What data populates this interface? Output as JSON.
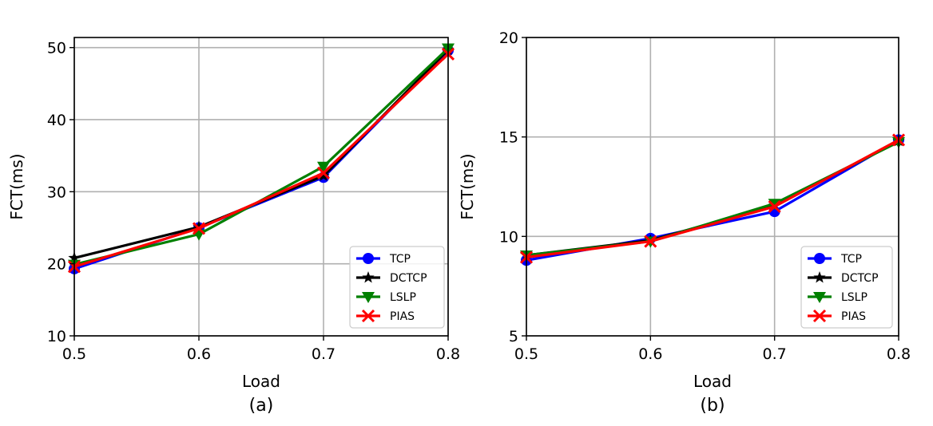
{
  "chart_data": [
    {
      "type": "line",
      "caption": "(a)",
      "xlabel": "Load",
      "ylabel": "FCT(ms)",
      "x": [
        0.5,
        0.6,
        0.7,
        0.8
      ],
      "x_ticks": [
        "0.5",
        "0.6",
        "0.7",
        "0.8"
      ],
      "xlim": [
        0.5,
        0.8
      ],
      "y_ticks": [
        "10",
        "20",
        "30",
        "40",
        "50"
      ],
      "ylim": [
        10,
        51.4
      ],
      "grid": true,
      "legend_position": "bottom-right",
      "series": [
        {
          "name": "TCP",
          "color": "#0000ff",
          "marker": "circle",
          "values": [
            19.3,
            25.0,
            32.0,
            49.6
          ]
        },
        {
          "name": "DCTCP",
          "color": "#000000",
          "marker": "star",
          "values": [
            20.8,
            25.1,
            32.2,
            49.7
          ]
        },
        {
          "name": "LSLP",
          "color": "#008000",
          "marker": "triangle-down",
          "values": [
            19.9,
            24.1,
            33.5,
            49.9
          ]
        },
        {
          "name": "PIAS",
          "color": "#ff0000",
          "marker": "x",
          "values": [
            19.6,
            24.9,
            32.6,
            49.1
          ]
        }
      ]
    },
    {
      "type": "line",
      "caption": "(b)",
      "xlabel": "Load",
      "ylabel": "FCT(ms)",
      "x": [
        0.5,
        0.6,
        0.7,
        0.8
      ],
      "x_ticks": [
        "0.5",
        "0.6",
        "0.7",
        "0.8"
      ],
      "xlim": [
        0.5,
        0.8
      ],
      "y_ticks": [
        "5",
        "10",
        "15",
        "20"
      ],
      "ylim": [
        5,
        20
      ],
      "grid": true,
      "legend_position": "bottom-right",
      "series": [
        {
          "name": "TCP",
          "color": "#0000ff",
          "marker": "circle",
          "values": [
            8.8,
            9.9,
            11.25,
            14.85
          ]
        },
        {
          "name": "DCTCP",
          "color": "#000000",
          "marker": "star",
          "values": [
            9.05,
            9.8,
            11.55,
            14.8
          ]
        },
        {
          "name": "LSLP",
          "color": "#008000",
          "marker": "triangle-down",
          "values": [
            9.05,
            9.75,
            11.65,
            14.75
          ]
        },
        {
          "name": "PIAS",
          "color": "#ff0000",
          "marker": "x",
          "values": [
            8.95,
            9.75,
            11.5,
            14.85
          ]
        }
      ]
    }
  ]
}
